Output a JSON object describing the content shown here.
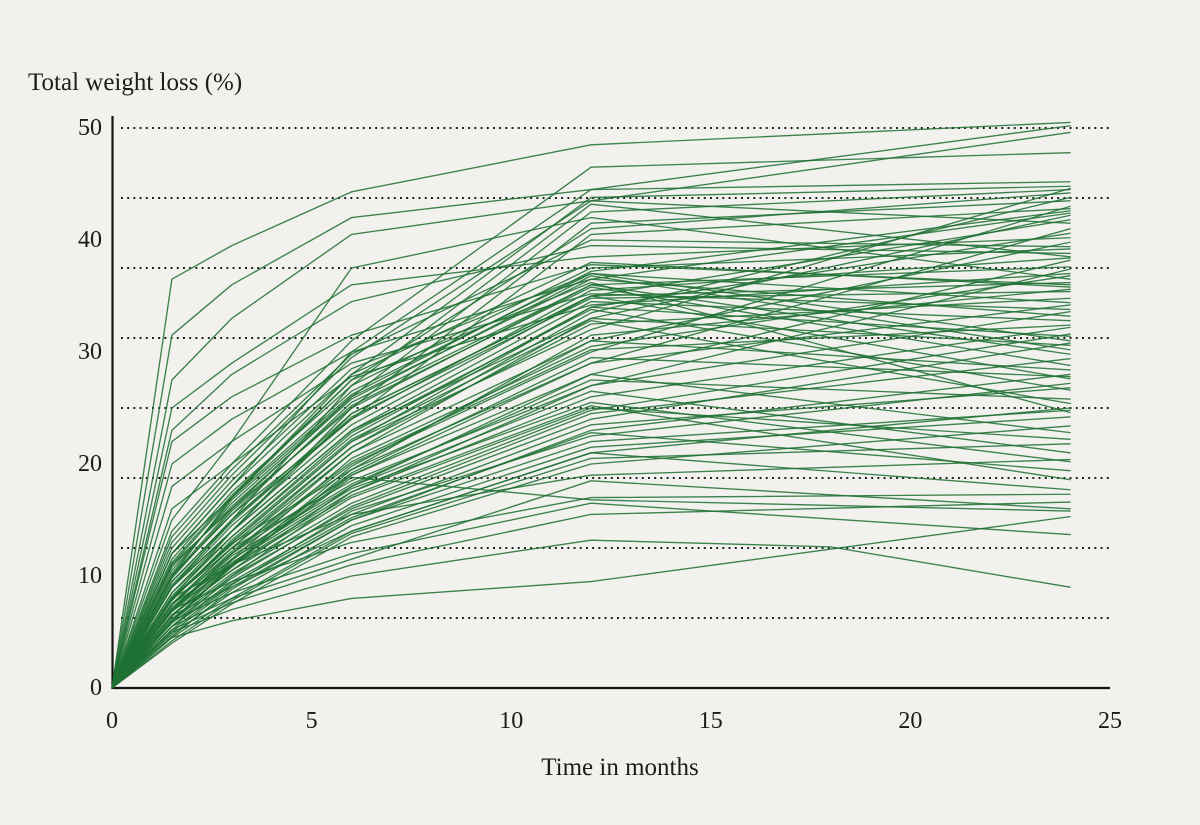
{
  "chart_data": {
    "type": "line",
    "subtype": "spaghetti-plot-individual-trajectories",
    "y_axis_title": "Total weight loss (%)",
    "x_axis_title": "Time in months",
    "xlim": [
      0,
      25
    ],
    "ylim": [
      0,
      50
    ],
    "x_ticks": [
      0,
      5,
      10,
      15,
      20,
      25
    ],
    "y_ticks": [
      0,
      10,
      20,
      30,
      40,
      50
    ],
    "gridlines_y": [
      6.25,
      12.5,
      18.75,
      25,
      31.25,
      37.5,
      43.75,
      50
    ],
    "grid_style": "dotted",
    "legend_position": "none",
    "colors": {
      "background": "#f2f1ee",
      "line": "#1f7034",
      "axis": "#141412",
      "grid": "#1b1b1b",
      "text": "#1e1c19"
    },
    "months": [
      0,
      1.5,
      3,
      6,
      12,
      24
    ],
    "series": [
      [
        0,
        36.5,
        39.5,
        44.3,
        48.5,
        50.5
      ],
      [
        0,
        31.5,
        36,
        42,
        44.5,
        50.2
      ],
      [
        0,
        27.5,
        33,
        40.5,
        43.5,
        49.6
      ],
      [
        0,
        14,
        20,
        31,
        46.5,
        47.8
      ],
      [
        0,
        12,
        18,
        30,
        44.5,
        45.2
      ],
      [
        0,
        10,
        17,
        28,
        43.8,
        44.8
      ],
      [
        0,
        13,
        19,
        29.5,
        43.5,
        41.5
      ],
      [
        0,
        9,
        15,
        27,
        43.2,
        38.5
      ],
      [
        0,
        11,
        16,
        26,
        42.5,
        44.5
      ],
      [
        0,
        8,
        14,
        25,
        41.5,
        43.5
      ],
      [
        0,
        15,
        22,
        37.5,
        42,
        36.5
      ],
      [
        0,
        12,
        17,
        27.5,
        41,
        44.2
      ],
      [
        0,
        10,
        15.5,
        24,
        40.5,
        42.8
      ],
      [
        0,
        7,
        12,
        20,
        30,
        43
      ],
      [
        0,
        8,
        13,
        22,
        32,
        44.6
      ],
      [
        0,
        6,
        11,
        19,
        29,
        41
      ],
      [
        0,
        9,
        14,
        23,
        33,
        42.2
      ],
      [
        0,
        7.5,
        12.5,
        21,
        31,
        39.8
      ],
      [
        0,
        6.5,
        10.5,
        18,
        28,
        38.2
      ],
      [
        0,
        8.5,
        13.5,
        22.5,
        34,
        40.6
      ],
      [
        0,
        5.5,
        10,
        17.5,
        27,
        37.4
      ],
      [
        0,
        7,
        11.5,
        20.5,
        30.5,
        36.8
      ],
      [
        0,
        9.5,
        15,
        24.5,
        35,
        41.8
      ],
      [
        0,
        8,
        12.8,
        21.5,
        33.5,
        43.8
      ],
      [
        0,
        6,
        10.8,
        19.5,
        31.5,
        35.6
      ],
      [
        0,
        10,
        16,
        25,
        36,
        37.6
      ],
      [
        0,
        11,
        17,
        26.5,
        37,
        34.4
      ],
      [
        0,
        9,
        14.5,
        23.5,
        35,
        36.2
      ],
      [
        0,
        12,
        18,
        28,
        38,
        35.8
      ],
      [
        0,
        10.5,
        16.5,
        26,
        36.5,
        33.2
      ],
      [
        0,
        8,
        13,
        22,
        34,
        31.4
      ],
      [
        0,
        9.5,
        15,
        24,
        35.5,
        38.4
      ],
      [
        0,
        7,
        12,
        21,
        33,
        30.6
      ],
      [
        0,
        11.5,
        17.5,
        27,
        37.5,
        39.2
      ],
      [
        0,
        8.5,
        14,
        23,
        34.5,
        32.8
      ],
      [
        0,
        10,
        15.5,
        25.5,
        36,
        29.8
      ],
      [
        0,
        7.5,
        12.5,
        21.5,
        32.5,
        34.8
      ],
      [
        0,
        9,
        14,
        24.5,
        35,
        27.6
      ],
      [
        0,
        12.5,
        18.5,
        28.5,
        37,
        31
      ],
      [
        0,
        6.5,
        11,
        19.8,
        31,
        28.4
      ],
      [
        0,
        10.8,
        16.2,
        25.8,
        36.8,
        30.2
      ],
      [
        0,
        8.2,
        13.5,
        22.8,
        33.8,
        26.6
      ],
      [
        0,
        9.8,
        15.8,
        25.2,
        35.8,
        28.8
      ],
      [
        0,
        7.8,
        13.2,
        22.2,
        32.8,
        25.4
      ],
      [
        0,
        11.2,
        17.2,
        27.5,
        36.2,
        24.6
      ],
      [
        0,
        6,
        10,
        16,
        24,
        30.8
      ],
      [
        0,
        5,
        9,
        15,
        23,
        28
      ],
      [
        0,
        7,
        11,
        17.5,
        26,
        32.2
      ],
      [
        0,
        4.5,
        8,
        14,
        21,
        25
      ],
      [
        0,
        6.5,
        10.5,
        17,
        25,
        22.2
      ],
      [
        0,
        5.5,
        9.5,
        15.5,
        23.5,
        26.8
      ],
      [
        0,
        8,
        12.5,
        18.5,
        27,
        33.6
      ],
      [
        0,
        4,
        7.5,
        13.5,
        20,
        23.4
      ],
      [
        0,
        7.2,
        11.5,
        18,
        26.5,
        21
      ],
      [
        0,
        5.8,
        9.8,
        16.2,
        24.5,
        29.4
      ],
      [
        0,
        6.8,
        11.2,
        17.8,
        25.5,
        20.2
      ],
      [
        0,
        5.2,
        9.2,
        15.8,
        22.5,
        27.2
      ],
      [
        0,
        4.8,
        8.5,
        14.5,
        21.5,
        24.2
      ],
      [
        0,
        7.5,
        12,
        19,
        28,
        22.8
      ],
      [
        0,
        6.2,
        10.2,
        16.5,
        24.8,
        31.6
      ],
      [
        0,
        5.5,
        9.3,
        15.2,
        22.8,
        19.4
      ],
      [
        0,
        6.9,
        11.8,
        18.2,
        27.5,
        25.8
      ],
      [
        0,
        4.2,
        7.8,
        13.8,
        20.5,
        21.8
      ],
      [
        0,
        5.9,
        10.9,
        17.2,
        25.2,
        18.6
      ],
      [
        0,
        7.9,
        12.9,
        19.5,
        29,
        34.2
      ],
      [
        0,
        6,
        8.5,
        12,
        16.5,
        13.7
      ],
      [
        0,
        4.5,
        6,
        8,
        9.5,
        15.3
      ],
      [
        0,
        5.5,
        8,
        11.5,
        18.5,
        16
      ],
      [
        0,
        7,
        9.5,
        13,
        17,
        17.3
      ],
      [
        0,
        6.5,
        9,
        14,
        21,
        17.7
      ],
      [
        0,
        5.2,
        7.6,
        11,
        15.5,
        16.6
      ],
      [
        0,
        8,
        11,
        15.5,
        19,
        20.4
      ],
      [
        0,
        7.5,
        11,
        18.8,
        16.8,
        15.8
      ],
      [
        0,
        25,
        29,
        36,
        38.5,
        40.2
      ],
      [
        0,
        22,
        26,
        31.5,
        37.8,
        36
      ],
      [
        0,
        20,
        24,
        30,
        36.5,
        42.4
      ],
      [
        0,
        18,
        22,
        29,
        35.2,
        33.8
      ],
      [
        0,
        16,
        20,
        27.8,
        34.2,
        37
      ],
      [
        0,
        23,
        28,
        34.5,
        39.5,
        38.8
      ],
      [
        0,
        13.5,
        19.5,
        29.8,
        40,
        39.4
      ],
      [
        0,
        4.6,
        8.8,
        15,
        22,
        24.8
      ],
      [
        0,
        9.2,
        14.8,
        24.2,
        34.8,
        35.4
      ],
      [
        0,
        6.4,
        11.4,
        19.2,
        29.5,
        27.8
      ],
      [
        0,
        10.2,
        16.8,
        26.2,
        37.2,
        42.6
      ],
      [
        0,
        7.4,
        12.2,
        20.2,
        30.2,
        32.4
      ]
    ],
    "extra_series": [
      {
        "months": [
          0,
          1.5,
          3,
          6,
          12,
          18,
          24
        ],
        "values": [
          0,
          5,
          7,
          10,
          13.2,
          12.6,
          9
        ]
      }
    ]
  }
}
